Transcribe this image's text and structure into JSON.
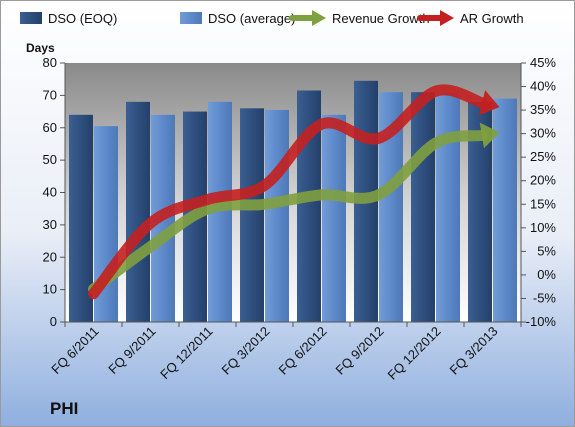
{
  "chart_data": {
    "type": "bar",
    "title": "",
    "corner_label": "PHI",
    "y_left_label": "Days",
    "y_left_lim": [
      0,
      80
    ],
    "y_left_ticks": [
      0,
      10,
      20,
      30,
      40,
      50,
      60,
      70,
      80
    ],
    "y_right_lim": [
      -10,
      45
    ],
    "y_right_ticks": [
      "-10%",
      "-5%",
      "0%",
      "5%",
      "10%",
      "15%",
      "20%",
      "25%",
      "30%",
      "35%",
      "40%",
      "45%"
    ],
    "y_right_tick_values": [
      -10,
      -5,
      0,
      5,
      10,
      15,
      20,
      25,
      30,
      35,
      40,
      45
    ],
    "categories": [
      "FQ 6/2011",
      "FQ 9/2011",
      "FQ 12/2011",
      "FQ 3/2012",
      "FQ 6/2012",
      "FQ 9/2012",
      "FQ 12/2012",
      "FQ 3/2013"
    ],
    "legend_position": "top",
    "series": [
      {
        "name": "DSO (EOQ)",
        "type": "bar",
        "axis": "left",
        "color": "#2E4F7E",
        "values": [
          64,
          68,
          65,
          66,
          71.5,
          74.5,
          71,
          68
        ]
      },
      {
        "name": "DSO (average)",
        "type": "bar",
        "axis": "left",
        "color": "#5E8ACB",
        "values": [
          60.5,
          64,
          68,
          65.5,
          64,
          71,
          71,
          69
        ]
      },
      {
        "name": "Revenue Growth",
        "type": "line",
        "axis": "right",
        "color": "#7FA03F",
        "values": [
          -3,
          6,
          14,
          15,
          17,
          17,
          28,
          30
        ]
      },
      {
        "name": "AR Growth",
        "type": "line",
        "axis": "right",
        "color": "#C42020",
        "values": [
          -4,
          11,
          16,
          19,
          32,
          29,
          39,
          36
        ]
      }
    ]
  }
}
